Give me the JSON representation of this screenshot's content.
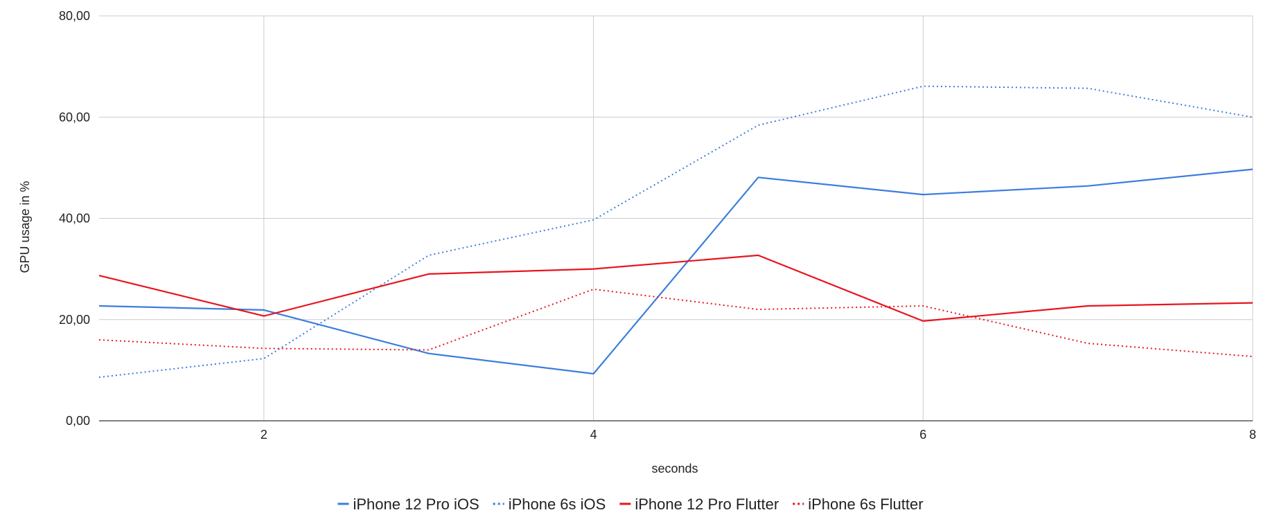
{
  "chart_data": {
    "type": "line",
    "title": "",
    "xlabel": "seconds",
    "ylabel": "GPU usage in %",
    "x": [
      1,
      2,
      3,
      4,
      5,
      6,
      7,
      8
    ],
    "xlim": [
      1,
      8
    ],
    "ylim": [
      0,
      80
    ],
    "x_ticks": [
      2,
      4,
      6,
      8
    ],
    "x_tick_labels": [
      "2",
      "4",
      "6",
      "8"
    ],
    "y_ticks": [
      0,
      20,
      40,
      60,
      80
    ],
    "y_tick_labels": [
      "0,00",
      "20,00",
      "40,00",
      "60,00",
      "80,00"
    ],
    "grid": true,
    "legend_position": "bottom",
    "series": [
      {
        "name": "iPhone 12 Pro iOS",
        "color": "#3b7ddd",
        "dash": "solid",
        "values": [
          22.7,
          21.9,
          13.3,
          9.3,
          48.1,
          44.7,
          46.4,
          49.7
        ]
      },
      {
        "name": "iPhone 6s iOS",
        "color": "#3b7ddd",
        "dash": "dotted",
        "values": [
          8.6,
          12.3,
          32.7,
          39.7,
          58.4,
          66.1,
          65.7,
          60.0
        ]
      },
      {
        "name": "iPhone 12 Pro Flutter",
        "color": "#e8141c",
        "dash": "solid",
        "values": [
          28.7,
          20.7,
          29.0,
          30.0,
          32.7,
          19.7,
          22.7,
          23.3
        ]
      },
      {
        "name": "iPhone 6s Flutter",
        "color": "#e8141c",
        "dash": "dotted",
        "values": [
          16.0,
          14.3,
          14.0,
          26.0,
          22.0,
          22.7,
          15.3,
          12.7
        ]
      }
    ]
  }
}
